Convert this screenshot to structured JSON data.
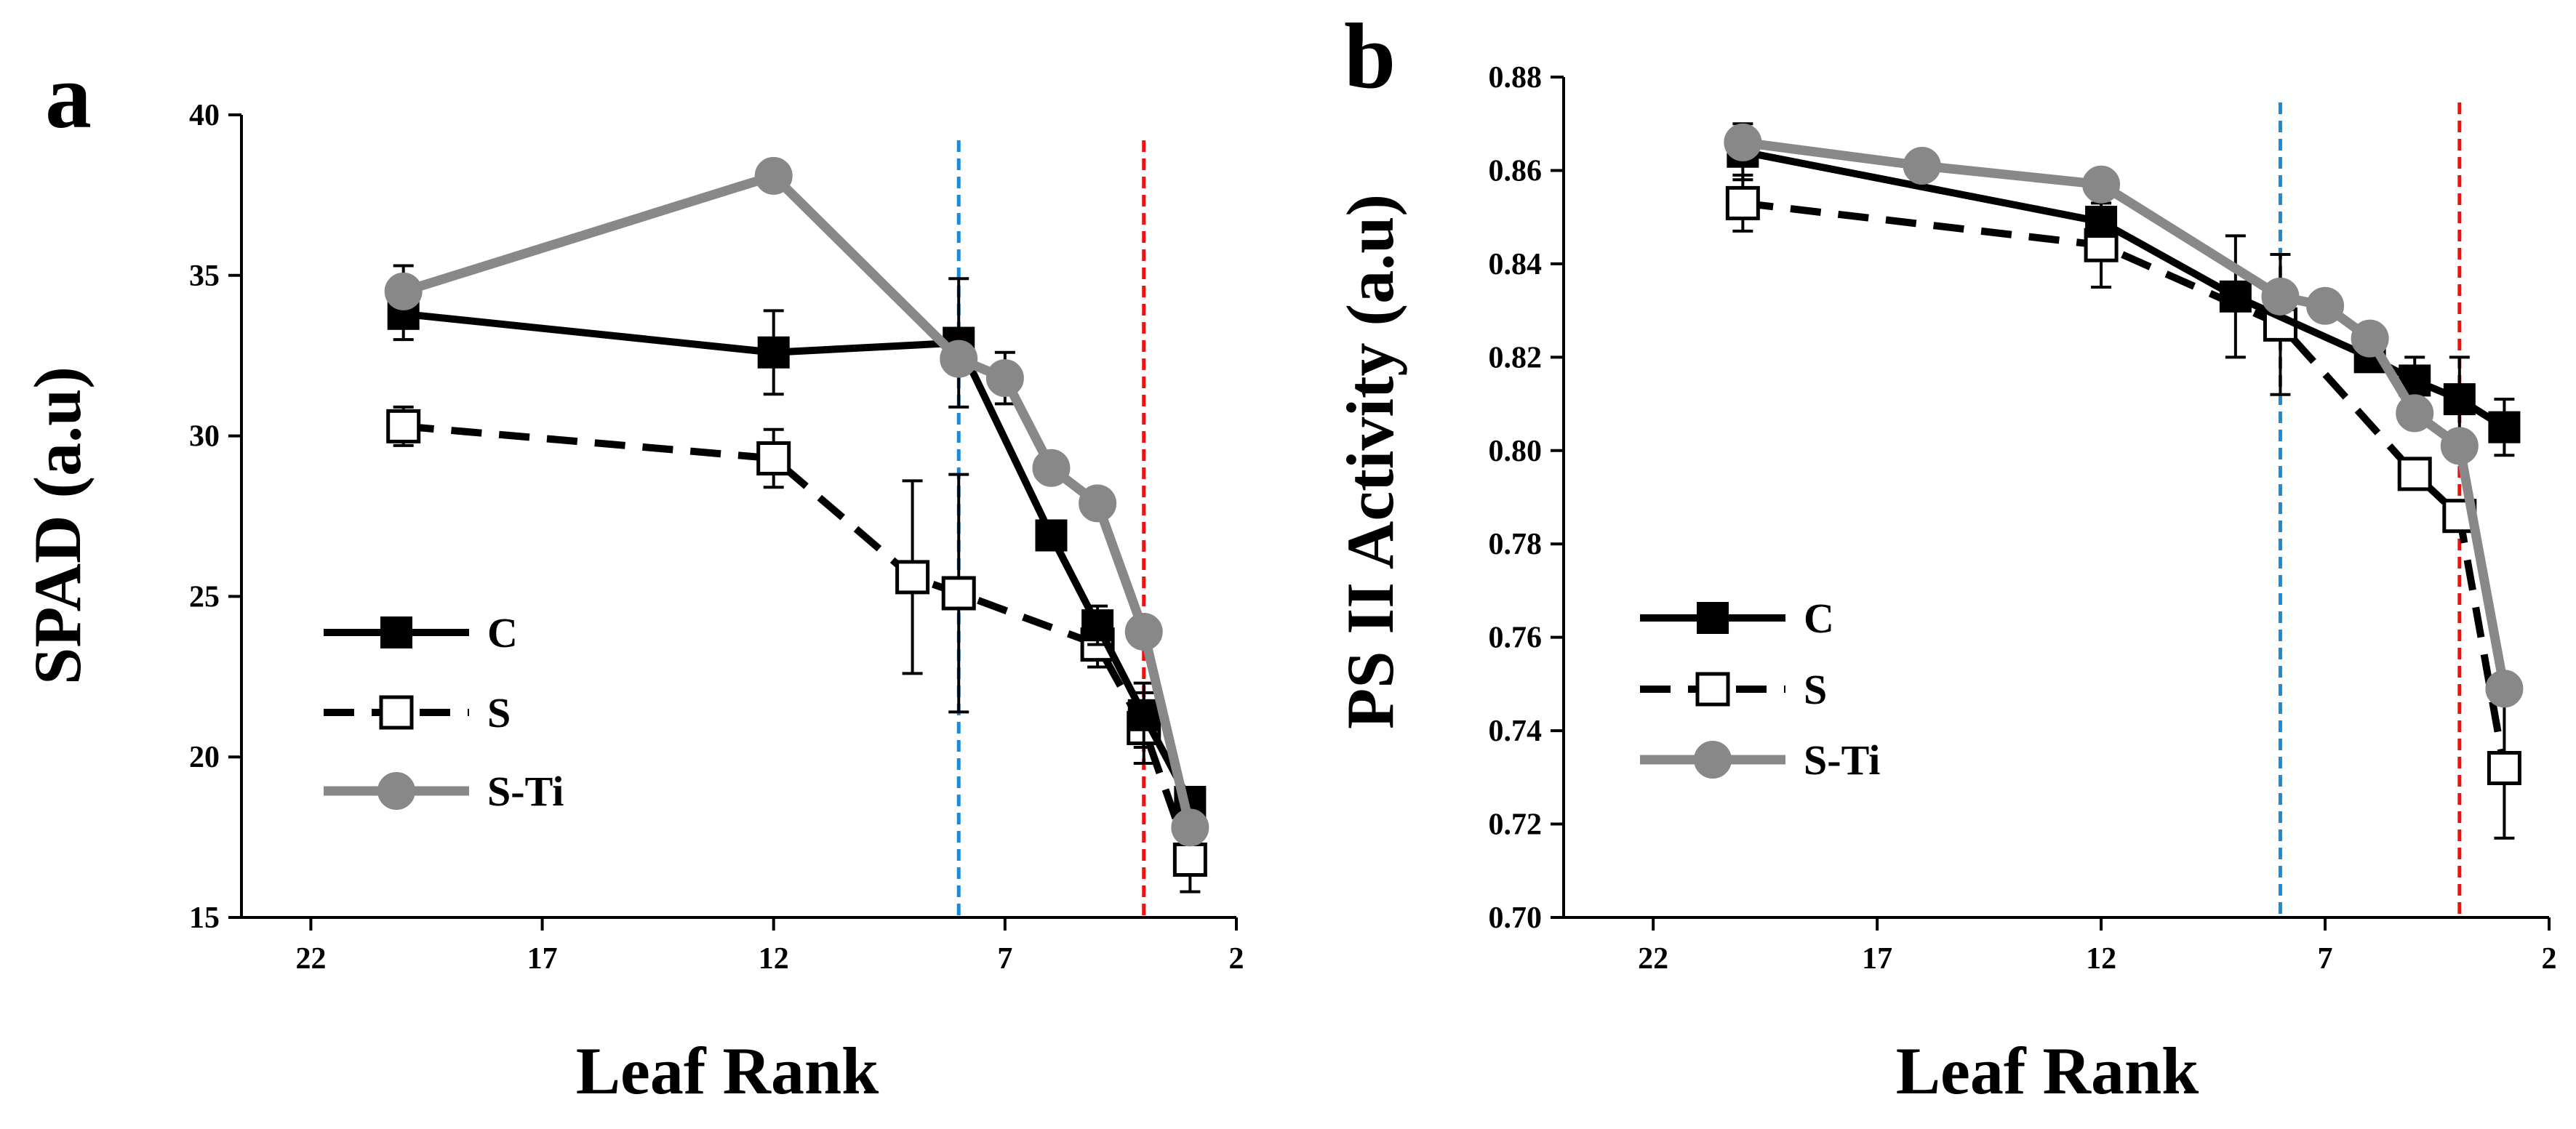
{
  "chart_data": [
    {
      "type": "line",
      "panel_label": "a",
      "title": "",
      "xlabel": "Leaf Rank",
      "ylabel": "SPAD (a.u)",
      "x_reversed": true,
      "xlim": [
        23.5,
        2
      ],
      "ylim": [
        15,
        40
      ],
      "xticks": [
        "22",
        "17",
        "12",
        "7",
        "2"
      ],
      "yticks": [
        "15",
        "20",
        "25",
        "30",
        "35",
        "40"
      ],
      "grid": false,
      "legend_position": "lower-left",
      "reference_lines": [
        {
          "x": 8,
          "color": "#1e88d9"
        },
        {
          "x": 4,
          "color": "#ee1111"
        }
      ],
      "series": [
        {
          "name": "C",
          "style": "solid",
          "color": "#000000",
          "marker": "filled-square",
          "points": [
            {
              "x": 20,
              "y": 33.8,
              "err": 0.8
            },
            {
              "x": 12,
              "y": 32.6,
              "err": 1.3
            },
            {
              "x": 8,
              "y": 32.9,
              "err": 2.0
            },
            {
              "x": 6,
              "y": 26.9,
              "err": 0
            },
            {
              "x": 5,
              "y": 24.1,
              "err": 0.6
            },
            {
              "x": 4,
              "y": 21.3,
              "err": 1.0
            },
            {
              "x": 3,
              "y": 18.6,
              "err": 0
            }
          ]
        },
        {
          "name": "S",
          "style": "dashed",
          "color": "#000000",
          "marker": "open-square",
          "points": [
            {
              "x": 20,
              "y": 30.3,
              "err": 0.6
            },
            {
              "x": 12,
              "y": 29.3,
              "err": 0.9
            },
            {
              "x": 9,
              "y": 25.6,
              "err": 3.0
            },
            {
              "x": 8,
              "y": 25.1,
              "err": 3.7
            },
            {
              "x": 5,
              "y": 23.5,
              "err": 0.7
            },
            {
              "x": 4,
              "y": 20.9,
              "err": 1.1
            },
            {
              "x": 3,
              "y": 16.8,
              "err": 1.0
            }
          ]
        },
        {
          "name": "S-Ti",
          "style": "solid",
          "color": "#888888",
          "marker": "filled-circle",
          "points": [
            {
              "x": 20,
              "y": 34.5,
              "err": 0.8
            },
            {
              "x": 12,
              "y": 38.1,
              "err": 0
            },
            {
              "x": 8,
              "y": 32.4,
              "err": 0
            },
            {
              "x": 7,
              "y": 31.8,
              "err": 0.8
            },
            {
              "x": 6,
              "y": 29.0,
              "err": 0
            },
            {
              "x": 5,
              "y": 27.9,
              "err": 0
            },
            {
              "x": 4,
              "y": 23.9,
              "err": 0
            },
            {
              "x": 3,
              "y": 17.8,
              "err": 0
            }
          ]
        }
      ]
    },
    {
      "type": "line",
      "panel_label": "b",
      "title": "",
      "xlabel": "Leaf Rank",
      "ylabel": "PS II Activity (a.u)",
      "x_reversed": true,
      "xlim": [
        24,
        2
      ],
      "ylim": [
        0.7,
        0.88
      ],
      "xticks": [
        "22",
        "17",
        "12",
        "7",
        "2"
      ],
      "yticks": [
        "0.70",
        "0.72",
        "0.74",
        "0.76",
        "0.78",
        "0.80",
        "0.82",
        "0.84",
        "0.86",
        "0.88"
      ],
      "grid": false,
      "legend_position": "lower-left",
      "reference_lines": [
        {
          "x": 8,
          "color": "#1e88d9"
        },
        {
          "x": 4,
          "color": "#ee1111"
        }
      ],
      "series": [
        {
          "name": "C",
          "style": "solid",
          "color": "#000000",
          "marker": "filled-square",
          "points": [
            {
              "x": 20,
              "y": 0.864,
              "err": 0.006
            },
            {
              "x": 12,
              "y": 0.849,
              "err": 0
            },
            {
              "x": 9,
              "y": 0.833,
              "err": 0.013
            },
            {
              "x": 6,
              "y": 0.82,
              "err": 0
            },
            {
              "x": 5,
              "y": 0.815,
              "err": 0.005
            },
            {
              "x": 4,
              "y": 0.811,
              "err": 0.009
            },
            {
              "x": 3,
              "y": 0.805,
              "err": 0.006
            }
          ]
        },
        {
          "name": "S",
          "style": "dashed",
          "color": "#000000",
          "marker": "open-square",
          "points": [
            {
              "x": 20,
              "y": 0.853,
              "err": 0.006
            },
            {
              "x": 12,
              "y": 0.844,
              "err": 0.009
            },
            {
              "x": 8,
              "y": 0.827,
              "err": 0.015
            },
            {
              "x": 5,
              "y": 0.795,
              "err": 0
            },
            {
              "x": 4,
              "y": 0.786,
              "err": 0
            },
            {
              "x": 3,
              "y": 0.732,
              "err": 0.015
            }
          ]
        },
        {
          "name": "S-Ti",
          "style": "solid",
          "color": "#888888",
          "marker": "filled-circle",
          "points": [
            {
              "x": 20,
              "y": 0.866,
              "err": 0
            },
            {
              "x": 16,
              "y": 0.861,
              "err": 0
            },
            {
              "x": 12,
              "y": 0.857,
              "err": 0
            },
            {
              "x": 8,
              "y": 0.833,
              "err": 0
            },
            {
              "x": 7,
              "y": 0.831,
              "err": 0
            },
            {
              "x": 6,
              "y": 0.824,
              "err": 0
            },
            {
              "x": 5,
              "y": 0.808,
              "err": 0
            },
            {
              "x": 4,
              "y": 0.801,
              "err": 0
            },
            {
              "x": 3,
              "y": 0.749,
              "err": 0
            }
          ]
        }
      ]
    }
  ]
}
